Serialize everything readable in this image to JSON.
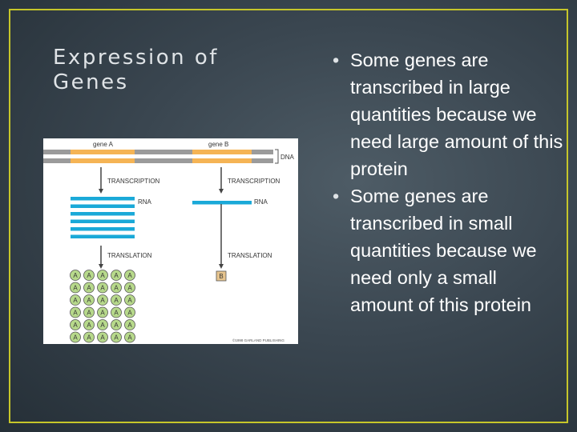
{
  "slide": {
    "title_lines": [
      "Expression of",
      "Genes"
    ],
    "bullets": [
      "Some genes are transcribed in large quantities because we need large amount of this protein",
      "Some genes are transcribed in small quantities because we need only a small amount of this protein"
    ],
    "bullet_glyph": "•"
  },
  "figure": {
    "gene_a_label": "gene A",
    "gene_b_label": "gene B",
    "dna_label": "DNA",
    "transcription_label": "TRANSCRIPTION",
    "rna_label": "RNA",
    "translation_label": "TRANSLATION",
    "protein_a_letter": "A",
    "protein_b_letter": "B",
    "copyright": "©1998 GARLAND PUBLISHING",
    "gene_a_rna_copies": 6,
    "gene_a_protein_count": 30,
    "gene_b_rna_copies": 1,
    "gene_b_protein_count": 1
  },
  "colors": {
    "background": "#3a4650",
    "frame": "#c6c62a",
    "gene": "#f5b455",
    "dna": "#9b9b9b",
    "rna": "#1aa9d8",
    "protein_a": "#b7d98b",
    "protein_b": "#e6c48e"
  }
}
